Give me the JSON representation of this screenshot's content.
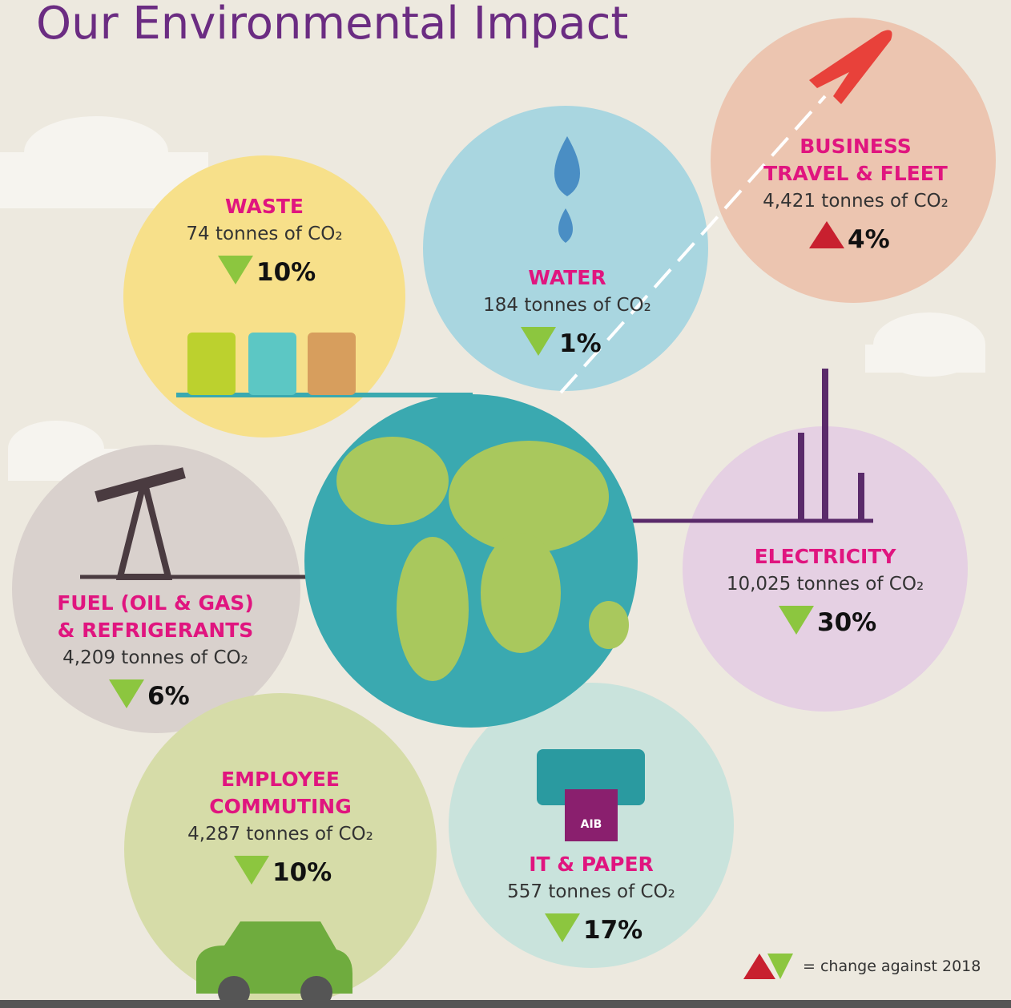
{
  "header": {
    "title": "Our Environmental Impact"
  },
  "items": [
    {
      "heading": [
        "WASTE"
      ],
      "amount": "74 tonnes of CO₂",
      "change": "10%",
      "direction": "down"
    },
    {
      "heading": [
        "WATER"
      ],
      "amount": "184 tonnes of CO₂",
      "change": "1%",
      "direction": "down"
    },
    {
      "heading": [
        "BUSINESS",
        "TRAVEL & FLEET"
      ],
      "amount": "4,421 tonnes of CO₂",
      "change": "4%",
      "direction": "up"
    },
    {
      "heading": [
        "ELECTRICITY"
      ],
      "amount": "10,025 tonnes of CO₂",
      "change": "30%",
      "direction": "down"
    },
    {
      "heading": [
        "FUEL (OIL & GAS)",
        "& REFRIGERANTS"
      ],
      "amount": "4,209 tonnes of CO₂",
      "change": "6%",
      "direction": "down"
    },
    {
      "heading": [
        "EMPLOYEE",
        "COMMUTING"
      ],
      "amount": "4,287 tonnes of CO₂",
      "change": "10%",
      "direction": "down"
    },
    {
      "heading": [
        "IT & PAPER"
      ],
      "amount": "557 tonnes of CO₂",
      "change": "17%",
      "direction": "down"
    }
  ],
  "logo": "AIB",
  "legend": "= change against 2018"
}
